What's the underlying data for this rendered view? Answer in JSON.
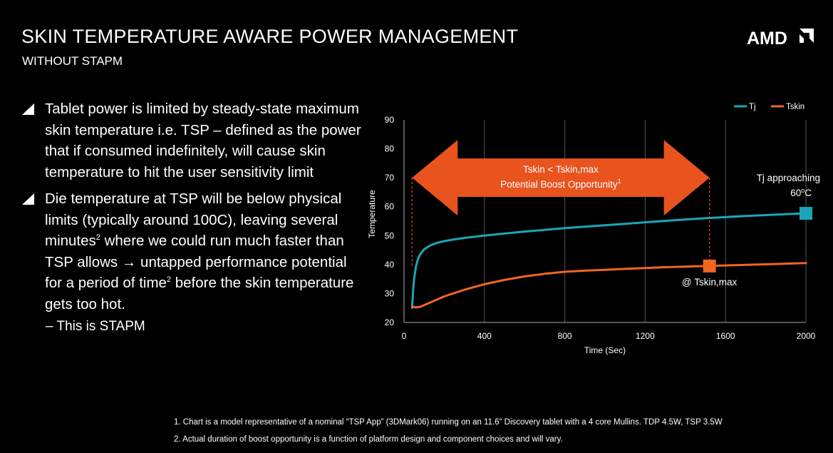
{
  "header": {
    "title": "SKIN TEMPERATURE AWARE POWER MANAGEMENT",
    "subtitle": "WITHOUT STAPM",
    "logo_text": "AMD"
  },
  "bullets": [
    {
      "parts": [
        "Tablet power is limited by steady-state maximum skin temperature i.e. TSP – defined as the power that if consumed indefinitely, will cause skin temperature to hit the user sensitivity limit"
      ]
    },
    {
      "parts": [
        "Die temperature at TSP will be below physical limits (typically around 100C), leaving several minutes",
        "2",
        " where we could run much faster than TSP allows ",
        "→",
        " untapped performance potential for a period of time",
        "2",
        " before the skin temperature gets too hot."
      ]
    }
  ],
  "sub_bullet": "– This is STAPM",
  "footnotes": [
    "1. Chart is a model representative of a nominal “TSP App” (3DMark06) running on an 11.6” Discovery tablet with a 4 core Mullins.  TDP 4.5W, TSP 3.5W",
    "2. Actual duration of boost opportunity is a function of platform design and component choices and will vary."
  ],
  "colors": {
    "background": "#000000",
    "tj": "#1aa6b7",
    "tskin": "#f26522",
    "arrow": "#e8531e",
    "grid": "#555555"
  },
  "chart_data": {
    "type": "line",
    "xlabel": "Time (Sec)",
    "ylabel": "Temperature",
    "xlim": [
      0,
      2000
    ],
    "ylim": [
      20,
      90
    ],
    "xticks": [
      0,
      400,
      800,
      1200,
      1600,
      2000
    ],
    "yticks": [
      20,
      30,
      40,
      50,
      60,
      70,
      80,
      90
    ],
    "grid": "vertical",
    "legend": "top-right",
    "series": [
      {
        "name": "Tj",
        "color": "#1aa6b7",
        "x": [
          40,
          45,
          50,
          60,
          70,
          80,
          100,
          130,
          160,
          200,
          260,
          300,
          400,
          500,
          600,
          700,
          800,
          900,
          1000,
          1100,
          1200,
          1300,
          1400,
          1500,
          1600,
          1700,
          1800,
          1900,
          2000
        ],
        "y": [
          25,
          31,
          35,
          39.5,
          42,
          43.5,
          45.3,
          46.6,
          47.4,
          48.1,
          48.8,
          49.2,
          50,
          50.7,
          51.4,
          52,
          52.6,
          53.1,
          53.6,
          54.1,
          54.6,
          55.1,
          55.6,
          56,
          56.4,
          56.8,
          57.1,
          57.4,
          57.7
        ]
      },
      {
        "name": "Tskin",
        "color": "#f26522",
        "x": [
          40,
          60,
          80,
          100,
          150,
          200,
          300,
          400,
          500,
          600,
          700,
          800,
          900,
          1000,
          1100,
          1200,
          1300,
          1400,
          1500,
          1600,
          1700,
          1800,
          1900,
          2000
        ],
        "y": [
          25.5,
          25.2,
          25.4,
          26,
          27.5,
          29,
          31.3,
          33.2,
          34.7,
          35.9,
          36.8,
          37.5,
          37.9,
          38.2,
          38.5,
          38.8,
          39.1,
          39.3,
          39.5,
          39.7,
          39.9,
          40.1,
          40.3,
          40.5
        ]
      }
    ],
    "markers": [
      {
        "series": "Tj",
        "x": 2000,
        "y": 57.7,
        "label_lines": [
          "Tj approaching",
          "60",
          "o",
          "C"
        ]
      },
      {
        "series": "Tskin",
        "x": 1520,
        "y": 39.5,
        "label_lines": [
          "@ Tskin,max"
        ]
      }
    ],
    "arrow": {
      "x_start": 40,
      "x_end": 1520,
      "y_center": 70,
      "text_lines": [
        "Tskin < Tskin,max",
        "Potential Boost Opportunity",
        "1"
      ]
    },
    "guide_lines": [
      {
        "x": 40,
        "y_from": 39,
        "y_to": 70
      },
      {
        "x": 1520,
        "y_from": 39.5,
        "y_to": 70
      }
    ]
  }
}
